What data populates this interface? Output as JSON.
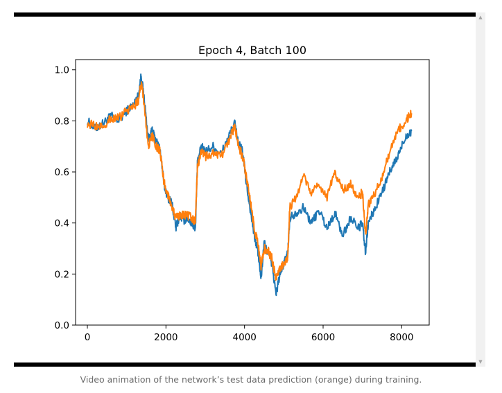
{
  "caption": "Video animation of the network’s test data prediction (orange) during training.",
  "colors": {
    "actual": "#1f77b4",
    "prediction": "#ff7f0e",
    "frame": "#000000"
  },
  "icons": {
    "scroll_up": "scroll-up-arrow-icon",
    "scroll_down": "scroll-down-arrow-icon"
  },
  "chart_data": {
    "type": "line",
    "title": "Epoch 4, Batch 100",
    "xlabel": "",
    "ylabel": "",
    "xlim": [
      -300,
      8700
    ],
    "ylim": [
      0.0,
      1.04
    ],
    "xticks": [
      0,
      2000,
      4000,
      6000,
      8000
    ],
    "xtick_labels": [
      "0",
      "2000",
      "4000",
      "6000",
      "8000"
    ],
    "yticks": [
      0.0,
      0.2,
      0.4,
      0.6,
      0.8,
      1.0
    ],
    "ytick_labels": [
      "0.0",
      "0.2",
      "0.4",
      "0.6",
      "0.8",
      "1.0"
    ],
    "series": [
      {
        "name": "test data",
        "color": "#1f77b4",
        "x": [
          0,
          200,
          400,
          600,
          800,
          1000,
          1200,
          1300,
          1370,
          1450,
          1550,
          1650,
          1750,
          1850,
          1950,
          2050,
          2150,
          2250,
          2350,
          2450,
          2550,
          2650,
          2750,
          2800,
          2900,
          3000,
          3200,
          3400,
          3600,
          3750,
          3850,
          3950,
          4050,
          4150,
          4250,
          4350,
          4420,
          4500,
          4600,
          4700,
          4800,
          4900,
          5000,
          5100,
          5150,
          5300,
          5500,
          5700,
          5900,
          6100,
          6300,
          6500,
          6700,
          6900,
          7000,
          7080,
          7150,
          7300,
          7500,
          7700,
          7900,
          8100,
          8250
        ],
        "y": [
          0.8,
          0.77,
          0.79,
          0.82,
          0.8,
          0.84,
          0.87,
          0.9,
          0.98,
          0.88,
          0.73,
          0.76,
          0.72,
          0.69,
          0.55,
          0.5,
          0.48,
          0.38,
          0.43,
          0.41,
          0.42,
          0.4,
          0.38,
          0.63,
          0.7,
          0.68,
          0.7,
          0.67,
          0.74,
          0.79,
          0.71,
          0.68,
          0.55,
          0.45,
          0.35,
          0.28,
          0.18,
          0.32,
          0.28,
          0.24,
          0.12,
          0.2,
          0.24,
          0.28,
          0.42,
          0.44,
          0.46,
          0.4,
          0.45,
          0.38,
          0.44,
          0.35,
          0.42,
          0.38,
          0.4,
          0.28,
          0.4,
          0.45,
          0.52,
          0.6,
          0.66,
          0.74,
          0.76
        ]
      },
      {
        "name": "prediction",
        "color": "#ff7f0e",
        "x": [
          0,
          200,
          400,
          600,
          800,
          1000,
          1200,
          1300,
          1370,
          1450,
          1550,
          1650,
          1750,
          1850,
          1950,
          2050,
          2150,
          2250,
          2350,
          2450,
          2550,
          2650,
          2750,
          2800,
          2900,
          3000,
          3200,
          3400,
          3600,
          3750,
          3850,
          3950,
          4050,
          4150,
          4250,
          4350,
          4420,
          4500,
          4600,
          4700,
          4800,
          4900,
          5000,
          5100,
          5150,
          5300,
          5500,
          5700,
          5900,
          6100,
          6300,
          6500,
          6700,
          6900,
          7000,
          7080,
          7150,
          7300,
          7500,
          7700,
          7900,
          8100,
          8250
        ],
        "y": [
          0.79,
          0.78,
          0.78,
          0.81,
          0.81,
          0.84,
          0.86,
          0.88,
          0.95,
          0.86,
          0.7,
          0.74,
          0.7,
          0.68,
          0.56,
          0.51,
          0.47,
          0.42,
          0.43,
          0.43,
          0.43,
          0.42,
          0.4,
          0.62,
          0.68,
          0.66,
          0.67,
          0.66,
          0.72,
          0.78,
          0.7,
          0.66,
          0.58,
          0.48,
          0.38,
          0.31,
          0.23,
          0.3,
          0.29,
          0.26,
          0.18,
          0.22,
          0.24,
          0.26,
          0.46,
          0.5,
          0.58,
          0.52,
          0.55,
          0.5,
          0.6,
          0.53,
          0.55,
          0.5,
          0.52,
          0.35,
          0.47,
          0.51,
          0.58,
          0.68,
          0.76,
          0.8,
          0.83
        ]
      }
    ]
  }
}
